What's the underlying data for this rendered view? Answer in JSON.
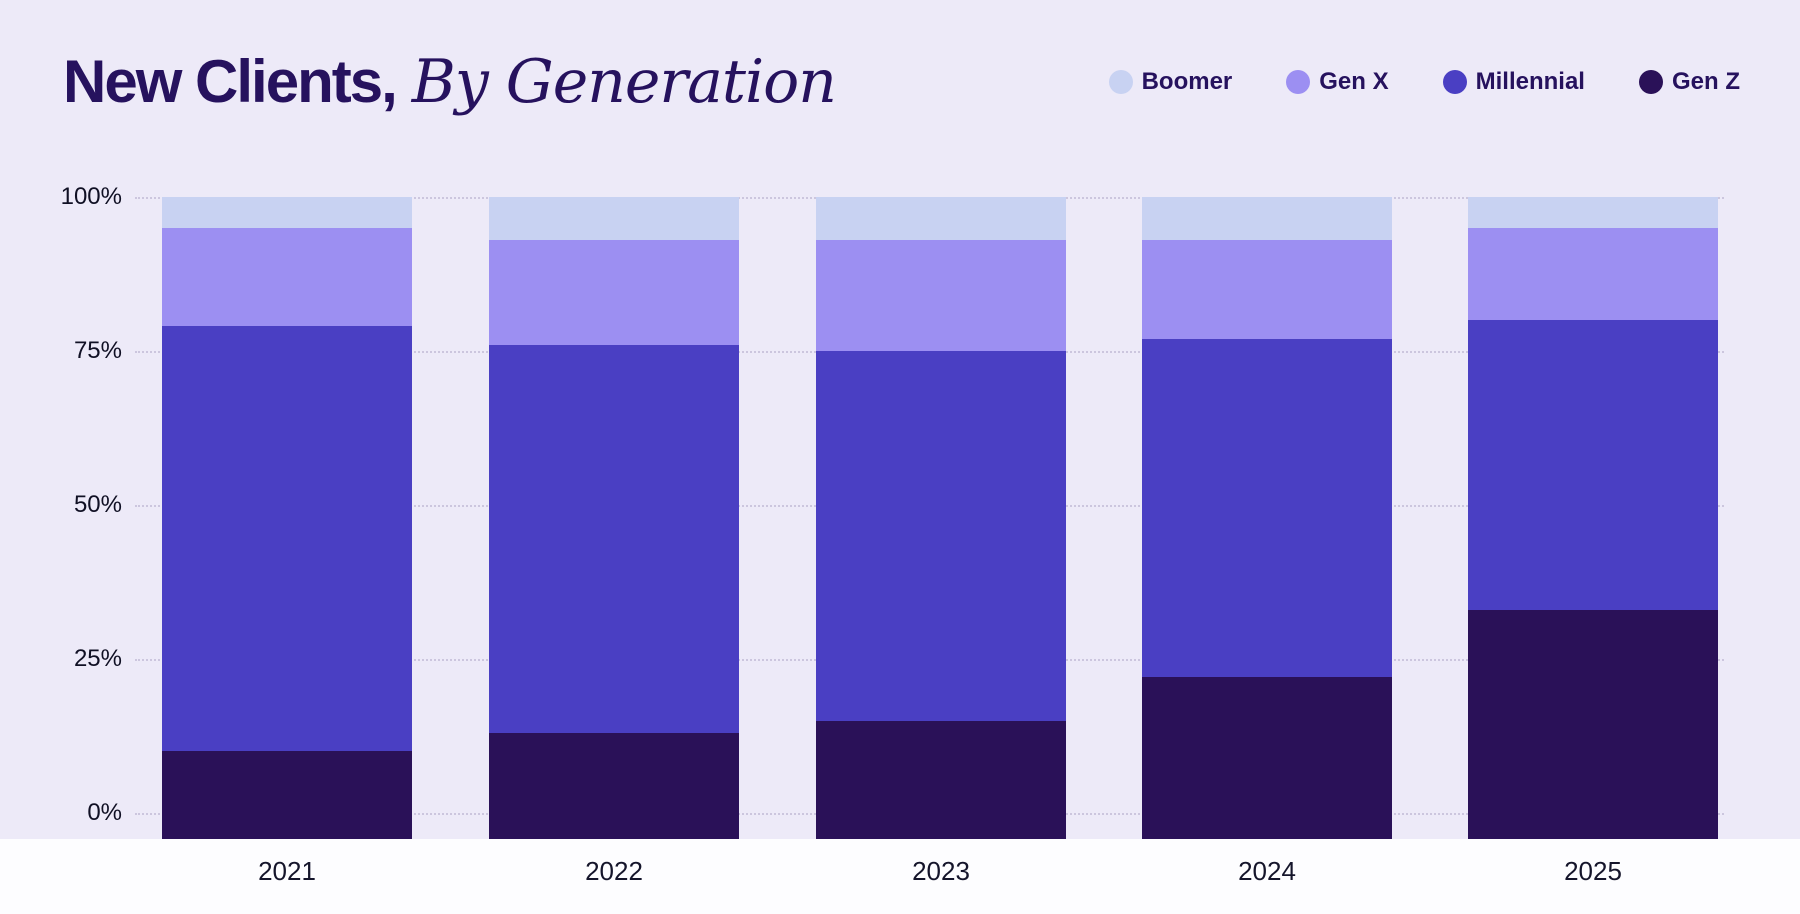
{
  "header": {
    "title_bold": "New Clients,",
    "title_italic": "By Generation"
  },
  "legend_items": [
    {
      "label": "Boomer",
      "color": "#c8d2f2"
    },
    {
      "label": "Gen X",
      "color": "#9c8ff2"
    },
    {
      "label": "Millennial",
      "color": "#4a3fc3"
    },
    {
      "label": "Gen Z",
      "color": "#2a1158"
    }
  ],
  "chart_data": {
    "type": "bar",
    "stacked": true,
    "percent": true,
    "title": "New Clients, By Generation",
    "categories": [
      "2021",
      "2022",
      "2023",
      "2024",
      "2025"
    ],
    "series": [
      {
        "name": "Gen Z",
        "color": "#2a1158",
        "values": [
          10,
          13,
          15,
          22,
          33
        ]
      },
      {
        "name": "Millennial",
        "color": "#4a3fc3",
        "values": [
          69,
          63,
          60,
          55,
          47
        ]
      },
      {
        "name": "Gen X",
        "color": "#9c8ff2",
        "values": [
          16,
          17,
          18,
          16,
          15
        ]
      },
      {
        "name": "Boomer",
        "color": "#c8d2f2",
        "values": [
          5,
          7,
          7,
          7,
          5
        ]
      }
    ],
    "yticks": [
      {
        "label": "0%",
        "value": 0
      },
      {
        "label": "25%",
        "value": 25
      },
      {
        "label": "50%",
        "value": 50
      },
      {
        "label": "75%",
        "value": 75
      },
      {
        "label": "100%",
        "value": 100
      }
    ],
    "ylim": [
      0,
      100
    ],
    "ylabel": "",
    "xlabel": "",
    "legend": [
      "Boomer",
      "Gen X",
      "Millennial",
      "Gen Z"
    ],
    "legend_position": "top-right",
    "grid": "dotted-horizontal",
    "colors": {
      "background": "#edeaf8",
      "axis_strip": "#fdfdff",
      "title_text": "#26125e",
      "axis_text": "#15152b",
      "gridline": "#ccc6de"
    }
  }
}
